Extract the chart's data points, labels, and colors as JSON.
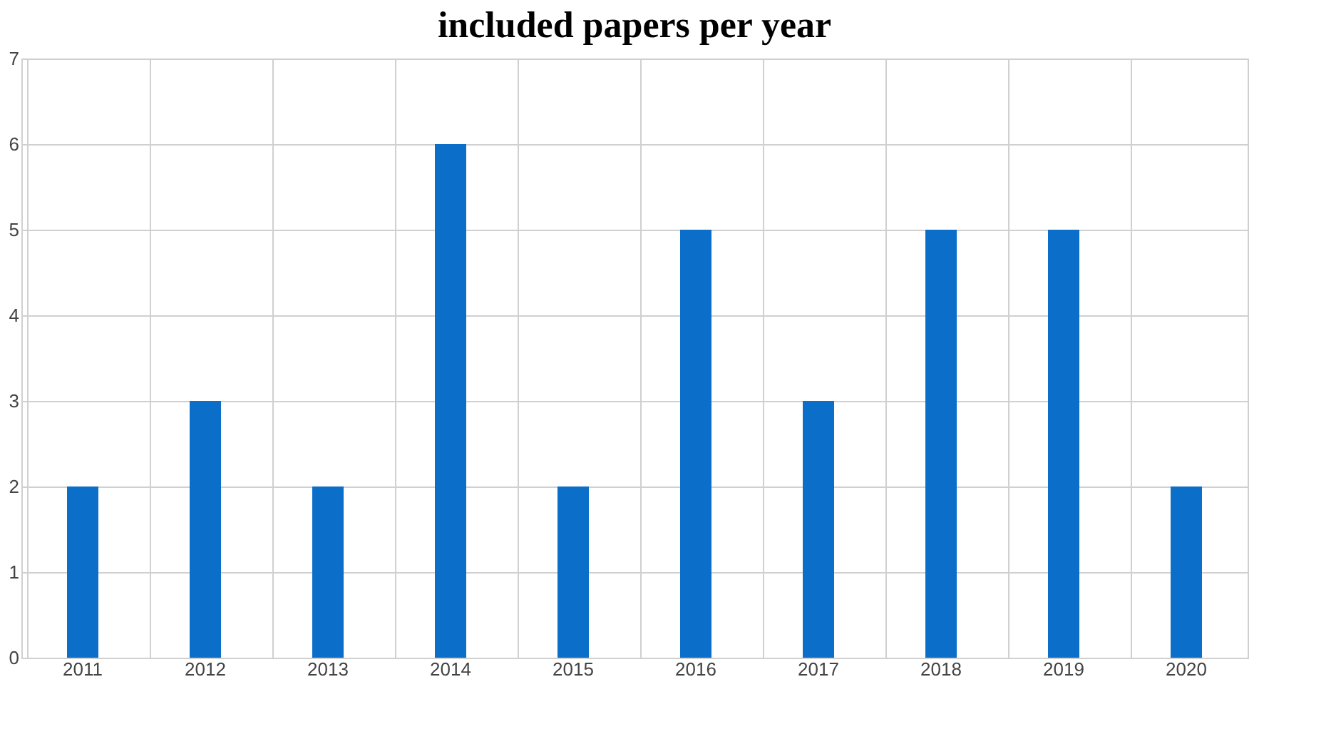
{
  "chart_data": {
    "type": "bar",
    "title": "included papers per year",
    "categories": [
      "2011",
      "2012",
      "2013",
      "2014",
      "2015",
      "2016",
      "2017",
      "2018",
      "2019",
      "2020"
    ],
    "values": [
      2,
      3,
      2,
      6,
      2,
      5,
      3,
      5,
      5,
      2
    ],
    "color": "#0b6fc9",
    "ylim": [
      0,
      7
    ],
    "yticks": [
      0,
      1,
      2,
      3,
      4,
      5,
      6,
      7
    ],
    "grid": true
  }
}
